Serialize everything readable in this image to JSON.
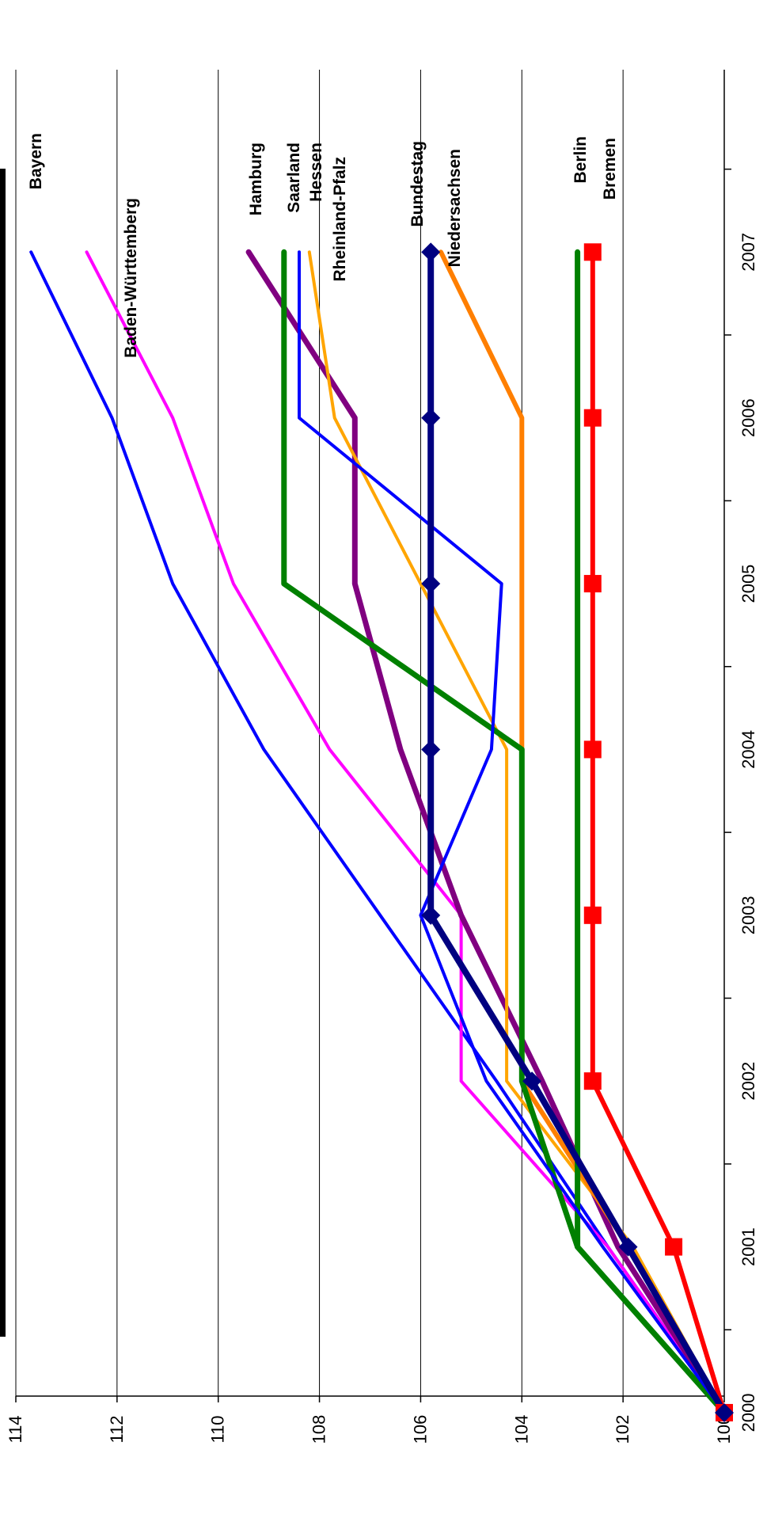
{
  "chart_data": {
    "type": "line",
    "title": "",
    "xlabel": "",
    "ylabel": "",
    "x": [
      2000,
      2001,
      2002,
      2003,
      2004,
      2005,
      2006,
      2007
    ],
    "x_tick_labels": [
      "2000",
      "2001",
      "2002",
      "2003",
      "2004",
      "2005",
      "2006",
      "2007"
    ],
    "ylim": [
      100,
      114
    ],
    "y_ticks": [
      100,
      102,
      104,
      106,
      108,
      110,
      112,
      114
    ],
    "y_tick_labels": [
      "100",
      "102",
      "104",
      "106",
      "108",
      "110",
      "112",
      "114"
    ],
    "grid": true,
    "orientation": "rotated 90 degrees clockwise",
    "series": [
      {
        "name": "Bayern",
        "color": "#0000ff",
        "values": [
          100,
          102.3,
          104.5,
          106.8,
          109.1,
          110.9,
          112.1,
          113.7
        ]
      },
      {
        "name": "Baden-Württemberg",
        "color": "#ff00ff",
        "values": [
          100,
          102.3,
          105.2,
          105.2,
          107.8,
          109.7,
          110.9,
          112.6
        ]
      },
      {
        "name": "Hamburg",
        "color": "#800080",
        "values": [
          100,
          102.1,
          103.6,
          105.2,
          106.4,
          107.3,
          107.3,
          109.4
        ]
      },
      {
        "name": "Saarland",
        "color": "#008000",
        "values": [
          100,
          102.9,
          104.0,
          104.0,
          104.0,
          108.7,
          108.7,
          108.7
        ]
      },
      {
        "name": "Hessen",
        "color": "#0000ff",
        "values": [
          100,
          102.4,
          104.7,
          106.0,
          104.6,
          104.4,
          108.4,
          108.4
        ]
      },
      {
        "name": "Rheinland-Pfalz",
        "color": "#ffa500",
        "values": [
          100,
          101.8,
          104.3,
          104.3,
          104.3,
          106.0,
          107.7,
          108.2
        ]
      },
      {
        "name": "Bundestag",
        "color": "#000080",
        "values": [
          100,
          101.9,
          103.8,
          105.8,
          105.8,
          105.8,
          105.8,
          105.8
        ]
      },
      {
        "name": "Niedersachsen",
        "color": "#ff7f00",
        "values": [
          100,
          101.9,
          104.0,
          104.0,
          104.0,
          104.0,
          104.0,
          105.6
        ]
      },
      {
        "name": "Berlin",
        "color": "#008000",
        "values": [
          100,
          102.9,
          102.9,
          102.9,
          102.9,
          102.9,
          102.9,
          102.9
        ]
      },
      {
        "name": "Bremen",
        "color": "#ff0000",
        "values": [
          100,
          101.0,
          102.6,
          102.6,
          102.6,
          102.6,
          102.6,
          102.6
        ]
      }
    ]
  }
}
